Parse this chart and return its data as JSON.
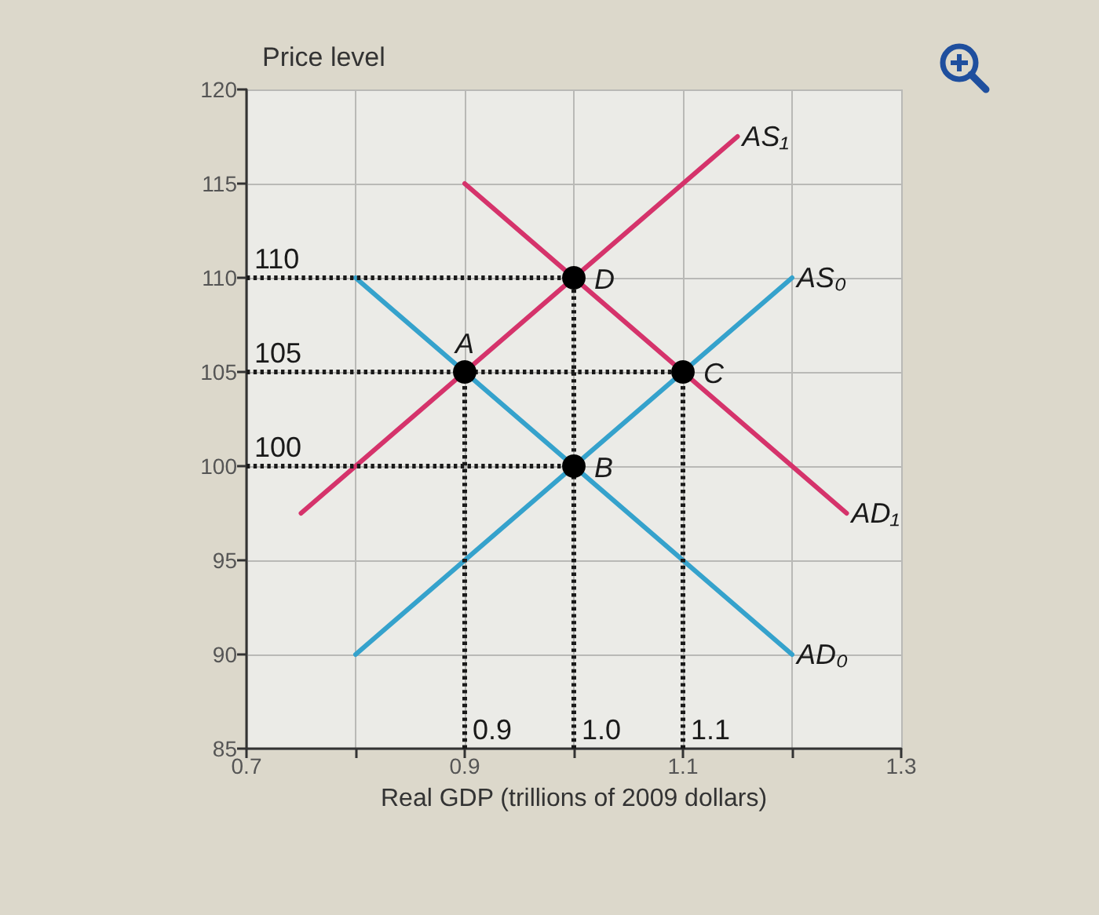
{
  "chart_data": {
    "type": "line",
    "xlabel": "Real GDP (trillions of 2009 dollars)",
    "ylabel": "Price level",
    "xlim": [
      0.7,
      1.3
    ],
    "xticks": [
      0.7,
      {
        "value": 0.8,
        "label": null
      },
      0.9,
      {
        "value": 1.0,
        "label": null
      },
      1.1,
      {
        "value": 1.2,
        "label": null
      },
      1.3
    ],
    "ylim": [
      85,
      120
    ],
    "yticks": [
      85,
      90,
      95,
      100,
      105,
      110,
      115,
      120
    ],
    "grid": true,
    "series": [
      {
        "name": "AS₁",
        "color": "#d5336b",
        "x": [
          0.75,
          1.15
        ],
        "values": [
          97.5,
          117.5
        ]
      },
      {
        "name": "AS₀",
        "color": "#35a2cc",
        "x": [
          0.8,
          1.2
        ],
        "values": [
          90,
          110
        ]
      },
      {
        "name": "AD₁",
        "color": "#d5336b",
        "x": [
          0.9,
          1.25
        ],
        "values": [
          115,
          97.5
        ]
      },
      {
        "name": "AD₀",
        "color": "#35a2cc",
        "x": [
          0.8,
          1.2
        ],
        "values": [
          110,
          90
        ]
      },
      {
        "color": "#1a1a1a",
        "line_style": "dotted",
        "x": [
          0.7,
          1.0
        ],
        "values": [
          110,
          110
        ]
      },
      {
        "color": "#1a1a1a",
        "line_style": "dotted",
        "x": [
          0.7,
          1.1
        ],
        "values": [
          105,
          105
        ]
      },
      {
        "color": "#1a1a1a",
        "line_style": "dotted",
        "x": [
          0.7,
          1.0
        ],
        "values": [
          100,
          100
        ]
      },
      {
        "color": "#1a1a1a",
        "line_style": "dotted",
        "x": [
          0.9,
          0.9
        ],
        "values": [
          85,
          105
        ]
      },
      {
        "color": "#1a1a1a",
        "line_style": "dotted",
        "x": [
          1.0,
          1.0
        ],
        "values": [
          85,
          110
        ]
      },
      {
        "color": "#1a1a1a",
        "line_style": "dotted",
        "x": [
          1.1,
          1.1
        ],
        "values": [
          85,
          105
        ]
      },
      {
        "type": "scatter",
        "color": "#000000",
        "marker": "circle",
        "x": [
          0.9,
          1.0,
          1.1,
          1.0
        ],
        "values": [
          105,
          100,
          105,
          110
        ]
      }
    ],
    "annotations": [
      {
        "text": "110",
        "x": 0.7,
        "y": 110
      },
      {
        "text": "105",
        "x": 0.7,
        "y": 105
      },
      {
        "text": "100",
        "x": 0.7,
        "y": 100
      },
      {
        "text": "0.9",
        "x": 0.9,
        "y": 85
      },
      {
        "text": "1.0",
        "x": 1.0,
        "y": 85
      },
      {
        "text": "1.1",
        "x": 1.1,
        "y": 85
      },
      {
        "text": "A",
        "x": 0.9,
        "y": 105
      },
      {
        "text": "B",
        "x": 1.0,
        "y": 100
      },
      {
        "text": "C",
        "x": 1.1,
        "y": 105
      },
      {
        "text": "D",
        "x": 1.0,
        "y": 110
      }
    ]
  }
}
